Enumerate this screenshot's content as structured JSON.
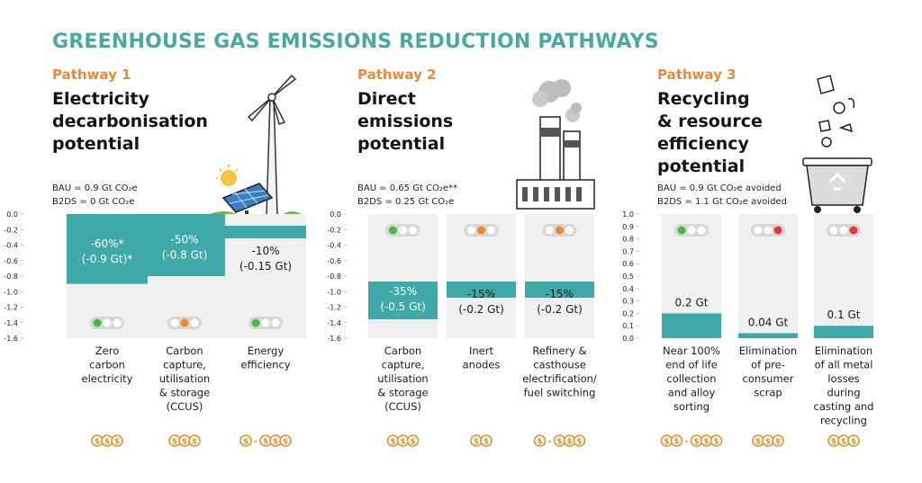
{
  "title": "GREENHOUSE GAS EMISSIONS REDUCTION PATHWAYS",
  "colors": {
    "teal": "#3fa9a7",
    "title_teal": "#4aa8a4",
    "orange_label": "#e98a3b",
    "column_bg": "#f0f0f0",
    "light_green": "#4cb848",
    "light_amber": "#ee8a2a",
    "light_red": "#e53935",
    "light_off": "#ffffff",
    "coin": "#d9952f"
  },
  "pathways": [
    {
      "label": "Pathway 1",
      "heading": [
        "Electricity",
        "decarbonisation",
        "potential"
      ],
      "bau": "BAU = 0.9 Gt CO₂e",
      "b2ds": "B2DS = 0 Gt CO₂e",
      "illustration": "wind-turbine-solar-panel-icon",
      "chart_data": {
        "type": "bar",
        "ylim": [
          -1.6,
          0
        ],
        "yticks": [
          "0.0",
          "-0.2",
          "-0.4",
          "-0.6",
          "-0.8",
          "-1.0",
          "-1.2",
          "-1.4",
          "-1.6"
        ],
        "categories": [
          "Zero carbon electricity",
          "Carbon capture, utilisation & storage (CCUS)",
          "Energy efficiency"
        ],
        "category_lines": [
          [
            "Zero",
            "carbon",
            "electricity"
          ],
          [
            "Carbon",
            "capture,",
            "utilisation",
            "& storage",
            "(CCUS)"
          ],
          [
            "Energy",
            "efficiency"
          ]
        ],
        "values": [
          -0.9,
          -0.8,
          -0.15
        ],
        "labels": [
          [
            "-60%*",
            "(-0.9 Gt)*"
          ],
          [
            "-50%",
            "(-0.8 Gt)"
          ],
          [
            "-10%",
            "(-0.15 Gt)"
          ]
        ],
        "lights": [
          "green",
          "amber",
          "green"
        ],
        "costs": [
          "$$$",
          "$$$",
          "$-$$$"
        ]
      }
    },
    {
      "label": "Pathway 2",
      "heading": [
        "Direct",
        "emissions",
        "potential"
      ],
      "bau": "BAU = 0.65 Gt CO₂e**",
      "b2ds": "B2DS = 0.25 Gt CO₂e",
      "illustration": "factory-smokestack-icon",
      "chart_data": {
        "type": "bar",
        "ylim": [
          -1.6,
          0
        ],
        "yticks": [
          "0.0",
          "-0.2",
          "-0.4",
          "-0.6",
          "-0.8",
          "-1.0",
          "-1.2",
          "-1.4",
          "-1.6"
        ],
        "categories": [
          "Carbon capture, utilisation & storage (CCUS)",
          "Inert anodes",
          "Refinery & casthouse electrification/ fuel switching"
        ],
        "category_lines": [
          [
            "Carbon",
            "capture,",
            "utilisation",
            "& storage",
            "(CCUS)"
          ],
          [
            "Inert",
            "anodes"
          ],
          [
            "Refinery &",
            "casthouse",
            "electrification/",
            "fuel switching"
          ]
        ],
        "values": [
          -0.5,
          -0.2,
          -0.2
        ],
        "labels": [
          [
            "-35%",
            "(-0.5 Gt)"
          ],
          [
            "-15%",
            "(-0.2 Gt)"
          ],
          [
            "-15%",
            "(-0.2 Gt)"
          ]
        ],
        "lights": [
          "green",
          "amber",
          "amber"
        ],
        "costs": [
          "$$$",
          "$$",
          "$-$$$"
        ]
      }
    },
    {
      "label": "Pathway 3",
      "heading": [
        "Recycling",
        "& resource",
        "efficiency",
        "potential"
      ],
      "bau": "BAU = 0.9 Gt CO₂e avoided",
      "b2ds": "B2DS = 1.1 Gt CO₂e avoided",
      "illustration": "recycling-bin-icon",
      "chart_data": {
        "type": "bar",
        "ylim": [
          0,
          1.0
        ],
        "yticks": [
          "1.0",
          "0.9",
          "0.8",
          "0.7",
          "0.6",
          "0.5",
          "0.4",
          "0.3",
          "0.2",
          "0.1",
          "0.0"
        ],
        "categories": [
          "Near 100% end of life collection and alloy sorting",
          "Elimination of pre-consumer scrap",
          "Elimination of all metal losses during casting and recycling"
        ],
        "category_lines": [
          [
            "Near 100%",
            "end of life",
            "collection",
            "and alloy",
            "sorting"
          ],
          [
            "Elimination",
            "of pre-",
            "consumer",
            "scrap"
          ],
          [
            "Elimination",
            "of all metal",
            "losses",
            "during",
            "casting and",
            "recycling"
          ]
        ],
        "values": [
          0.2,
          0.04,
          0.1
        ],
        "labels": [
          [
            "0.2 Gt"
          ],
          [
            "0.04 Gt"
          ],
          [
            "0.1 Gt"
          ]
        ],
        "lights": [
          "green",
          "red",
          "red"
        ],
        "costs": [
          "$$-$$$",
          "$$$",
          "$$$"
        ]
      }
    }
  ]
}
